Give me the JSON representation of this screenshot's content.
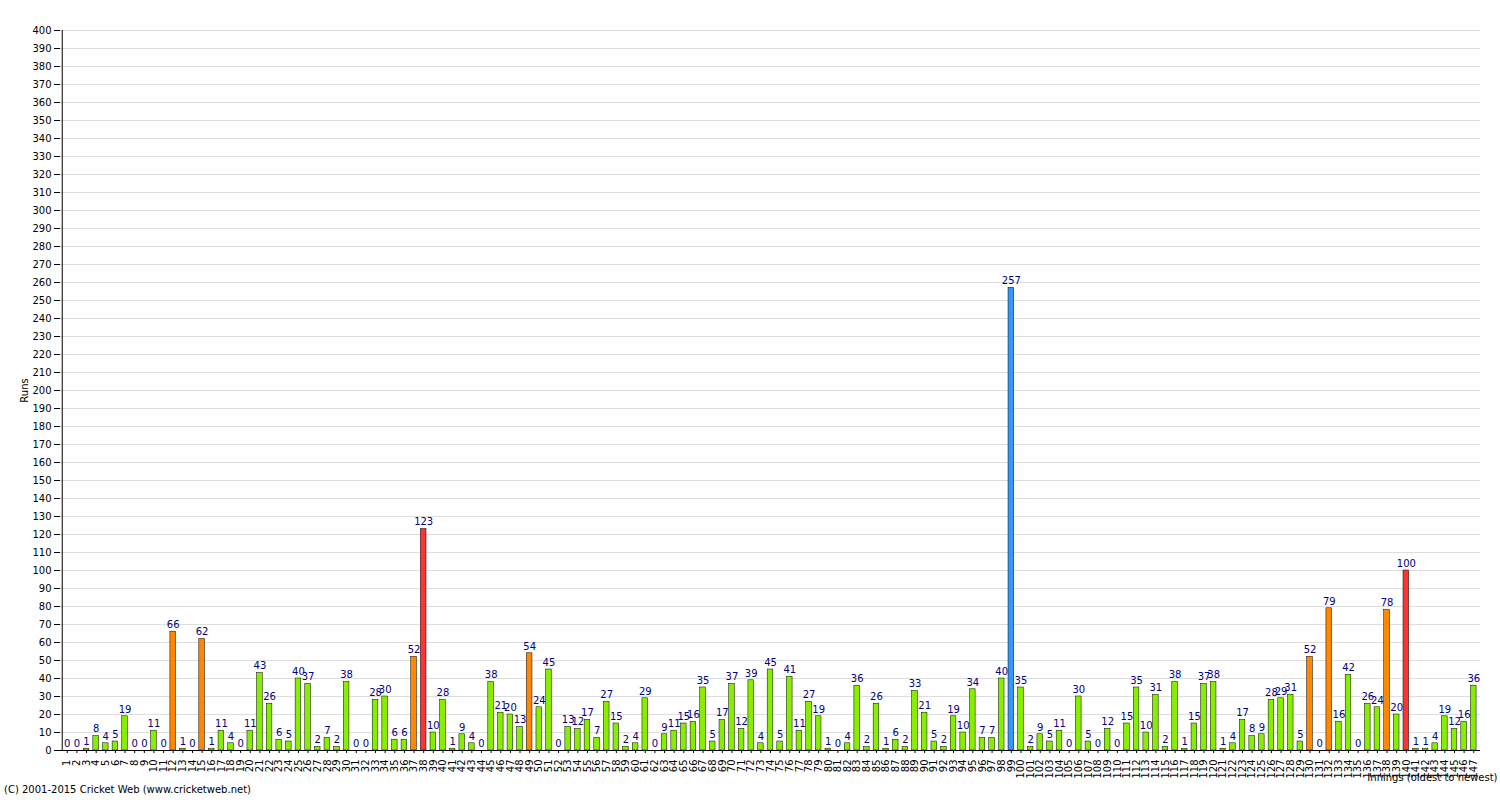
{
  "chart_data": {
    "type": "bar",
    "title": "",
    "y_label": "Runs",
    "x_label": "Innings (oldest to newest)",
    "caption": "(C) 2001-2015 Cricket Web (www.cricketweb.net)",
    "categories": [
      1,
      2,
      3,
      4,
      5,
      6,
      7,
      8,
      9,
      10,
      11,
      12,
      13,
      14,
      15,
      16,
      17,
      18,
      19,
      20,
      21,
      22,
      23,
      24,
      25,
      26,
      27,
      28,
      29,
      30,
      31,
      32,
      33,
      34,
      35,
      36,
      37,
      38,
      39,
      40,
      41,
      42,
      43,
      44,
      45,
      46,
      47,
      48,
      49,
      50,
      51,
      52,
      53,
      54,
      55,
      56,
      57,
      58,
      59,
      60,
      61,
      62,
      63,
      64,
      65,
      66,
      67,
      68,
      69,
      70,
      71,
      72,
      73,
      74,
      75,
      76,
      77,
      78,
      79,
      80,
      81,
      82,
      83,
      84,
      85,
      86,
      87,
      88,
      89,
      90,
      91,
      92,
      93,
      94,
      95,
      96,
      97,
      98,
      99,
      100,
      101,
      102,
      103,
      104,
      105,
      106,
      107,
      108,
      109,
      110,
      111,
      112,
      113,
      114,
      115,
      116,
      117,
      118,
      119,
      120,
      121,
      122,
      123,
      124,
      125,
      126,
      127,
      128,
      129,
      130,
      131,
      132,
      133,
      134,
      135,
      136,
      137,
      138,
      139,
      140,
      141,
      142,
      143,
      144,
      145,
      146,
      147
    ],
    "values": [
      0,
      0,
      1,
      8,
      4,
      5,
      19,
      0,
      0,
      11,
      0,
      66,
      1,
      0,
      62,
      1,
      11,
      4,
      0,
      11,
      43,
      26,
      6,
      5,
      40,
      37,
      2,
      7,
      2,
      38,
      0,
      0,
      28,
      30,
      6,
      6,
      52,
      123,
      10,
      28,
      1,
      9,
      4,
      0,
      38,
      21,
      20,
      13,
      54,
      24,
      45,
      0,
      13,
      12,
      17,
      7,
      27,
      15,
      2,
      4,
      29,
      0,
      9,
      11,
      15,
      16,
      35,
      5,
      17,
      37,
      12,
      39,
      4,
      45,
      5,
      41,
      11,
      27,
      19,
      1,
      0,
      4,
      36,
      2,
      26,
      1,
      6,
      2,
      33,
      21,
      5,
      2,
      19,
      10,
      34,
      7,
      7,
      40,
      257,
      35,
      2,
      9,
      5,
      11,
      0,
      30,
      5,
      0,
      12,
      0,
      15,
      35,
      10,
      31,
      2,
      38,
      1,
      15,
      37,
      38,
      1,
      4,
      17,
      8,
      9,
      28,
      29,
      31,
      5,
      52,
      0,
      79,
      16,
      42,
      0,
      26,
      24,
      78,
      20,
      100,
      1,
      1,
      4,
      19,
      12,
      16,
      36
    ],
    "colors": [
      "#88ee00",
      "#88ee00",
      "#88ee00",
      "#88ee00",
      "#88ee00",
      "#88ee00",
      "#88ee00",
      "#88ee00",
      "#88ee00",
      "#88ee00",
      "#88ee00",
      "#ff8800",
      "#88ee00",
      "#88ee00",
      "#ff8800",
      "#88ee00",
      "#88ee00",
      "#88ee00",
      "#88ee00",
      "#88ee00",
      "#88ee00",
      "#88ee00",
      "#88ee00",
      "#88ee00",
      "#88ee00",
      "#88ee00",
      "#88ee00",
      "#88ee00",
      "#88ee00",
      "#88ee00",
      "#88ee00",
      "#88ee00",
      "#88ee00",
      "#88ee00",
      "#88ee00",
      "#88ee00",
      "#ff8800",
      "#ff3333",
      "#88ee00",
      "#88ee00",
      "#88ee00",
      "#88ee00",
      "#88ee00",
      "#88ee00",
      "#88ee00",
      "#88ee00",
      "#88ee00",
      "#88ee00",
      "#ff8800",
      "#88ee00",
      "#88ee00",
      "#88ee00",
      "#88ee00",
      "#88ee00",
      "#88ee00",
      "#88ee00",
      "#88ee00",
      "#88ee00",
      "#88ee00",
      "#88ee00",
      "#88ee00",
      "#88ee00",
      "#88ee00",
      "#88ee00",
      "#88ee00",
      "#88ee00",
      "#88ee00",
      "#88ee00",
      "#88ee00",
      "#88ee00",
      "#88ee00",
      "#88ee00",
      "#88ee00",
      "#88ee00",
      "#88ee00",
      "#88ee00",
      "#88ee00",
      "#88ee00",
      "#88ee00",
      "#88ee00",
      "#88ee00",
      "#88ee00",
      "#88ee00",
      "#88ee00",
      "#88ee00",
      "#88ee00",
      "#88ee00",
      "#88ee00",
      "#88ee00",
      "#88ee00",
      "#88ee00",
      "#88ee00",
      "#88ee00",
      "#88ee00",
      "#88ee00",
      "#88ee00",
      "#88ee00",
      "#88ee00",
      "#3399ff",
      "#88ee00",
      "#88ee00",
      "#88ee00",
      "#88ee00",
      "#88ee00",
      "#88ee00",
      "#88ee00",
      "#88ee00",
      "#88ee00",
      "#88ee00",
      "#88ee00",
      "#88ee00",
      "#88ee00",
      "#88ee00",
      "#88ee00",
      "#88ee00",
      "#88ee00",
      "#88ee00",
      "#88ee00",
      "#88ee00",
      "#88ee00",
      "#88ee00",
      "#88ee00",
      "#88ee00",
      "#88ee00",
      "#88ee00",
      "#88ee00",
      "#88ee00",
      "#88ee00",
      "#88ee00",
      "#ff8800",
      "#88ee00",
      "#ff8800",
      "#88ee00",
      "#88ee00",
      "#88ee00",
      "#88ee00",
      "#88ee00",
      "#ff8800",
      "#88ee00",
      "#ff3333",
      "#88ee00",
      "#88ee00",
      "#88ee00",
      "#88ee00",
      "#88ee00",
      "#88ee00",
      "#88ee00"
    ],
    "ylim": [
      0,
      400
    ],
    "yticks": [
      0,
      10,
      20,
      30,
      40,
      50,
      60,
      70,
      80,
      90,
      100,
      110,
      120,
      130,
      140,
      150,
      160,
      170,
      180,
      190,
      200,
      210,
      220,
      230,
      240,
      250,
      260,
      270,
      280,
      290,
      300,
      310,
      320,
      330,
      340,
      350,
      360,
      370,
      380,
      390,
      400
    ],
    "grid": true,
    "data_labels": true
  }
}
